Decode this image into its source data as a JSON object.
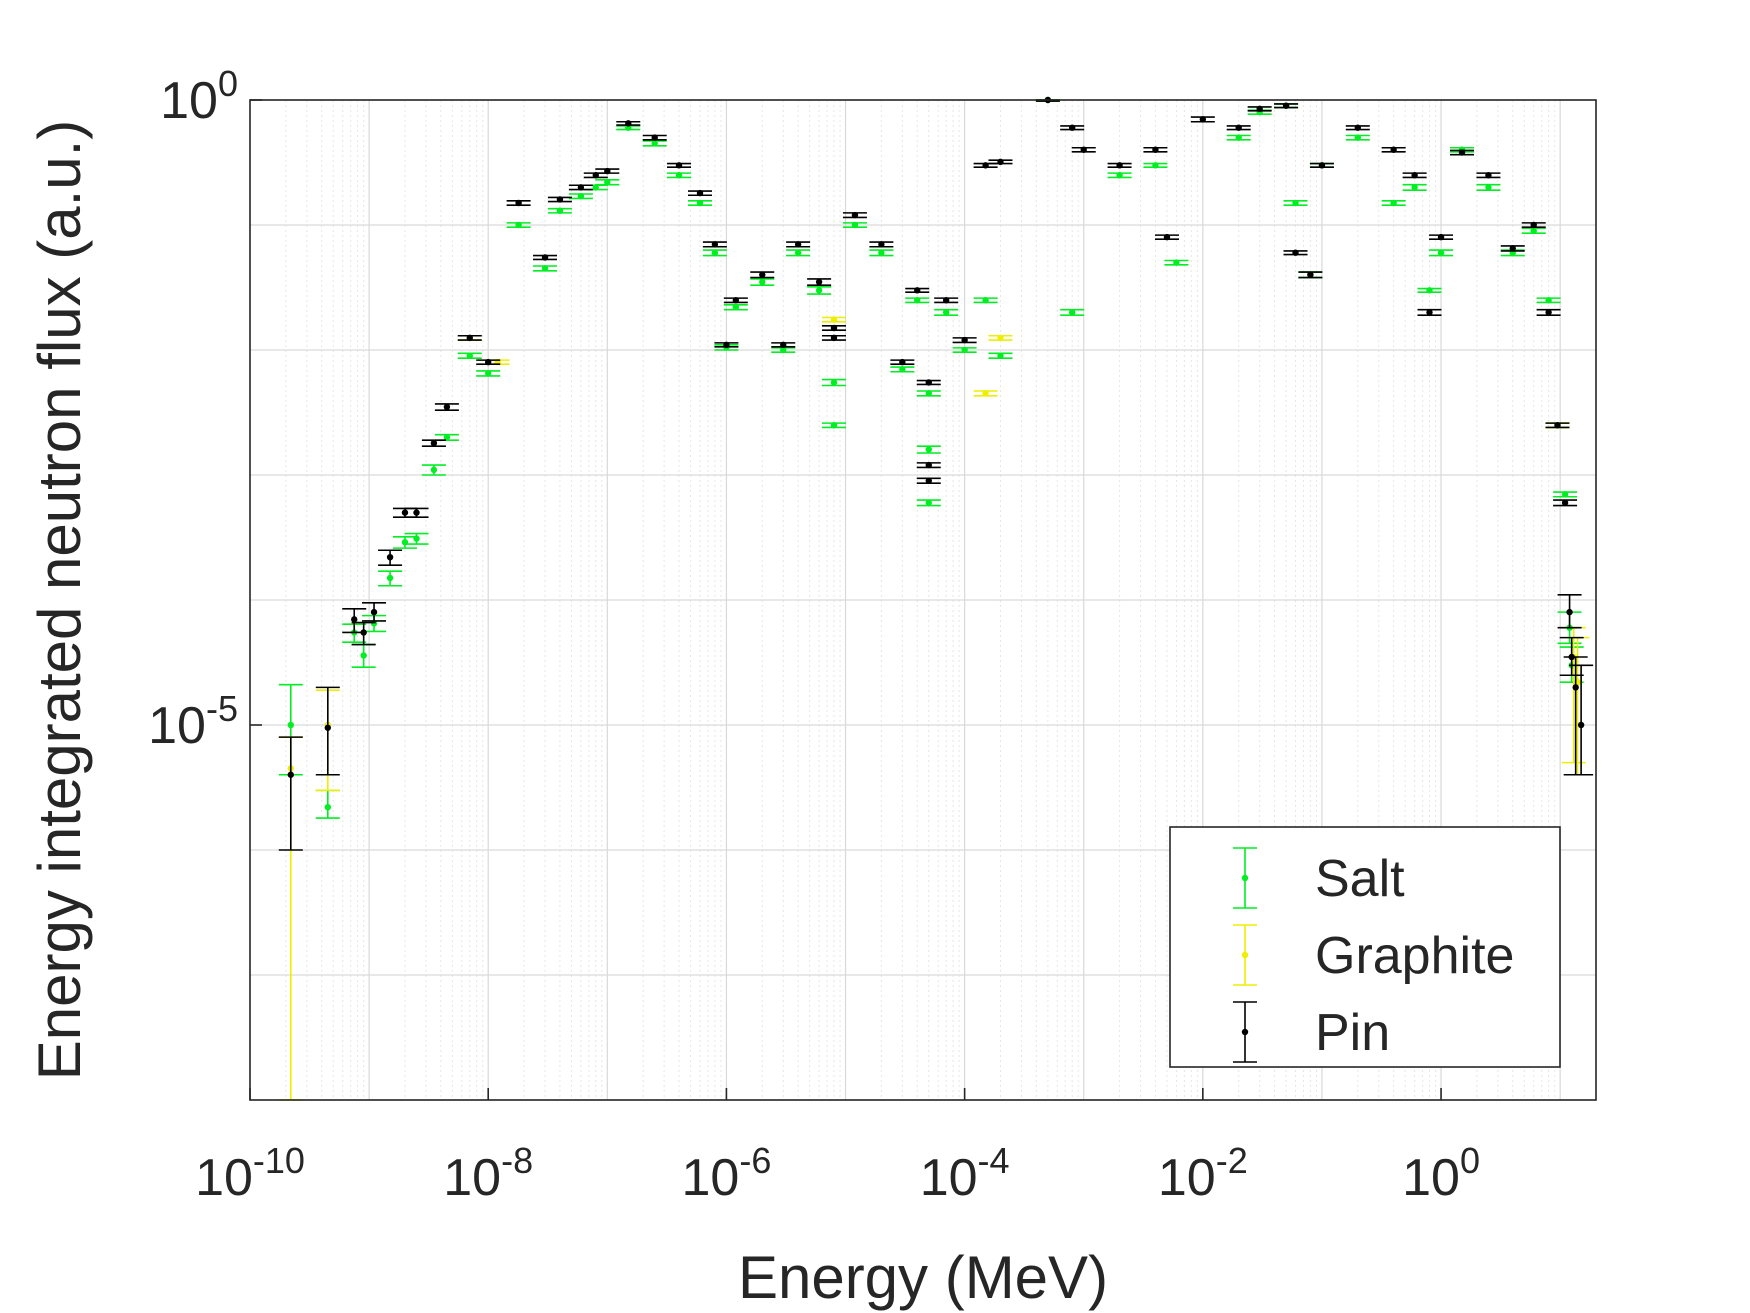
{
  "chart_data": {
    "type": "scatter",
    "title": "",
    "xlabel": "Energy (MeV)",
    "ylabel": "Energy integrated neutron flux (a.u.)",
    "x_scale": "log",
    "y_scale": "log",
    "xlim": [
      1e-10,
      20
    ],
    "ylim": [
      1e-08,
      1
    ],
    "x_ticks": [
      {
        "value": 1e-10,
        "base": "10",
        "exp": "-10"
      },
      {
        "value": 1e-08,
        "base": "10",
        "exp": "-8"
      },
      {
        "value": 1e-06,
        "base": "10",
        "exp": "-6"
      },
      {
        "value": 0.0001,
        "base": "10",
        "exp": "-4"
      },
      {
        "value": 0.01,
        "base": "10",
        "exp": "-2"
      },
      {
        "value": 1,
        "base": "10",
        "exp": "0"
      }
    ],
    "y_ticks": [
      {
        "value": 1,
        "base": "10",
        "exp": "0"
      },
      {
        "value": 1e-05,
        "base": "10",
        "exp": "-5"
      }
    ],
    "grid": true,
    "minor_grid": true,
    "legend_position": "bottom-right",
    "series": [
      {
        "name": "Salt",
        "color": "#00ee22",
        "points": [
          {
            "x": 2.2e-10,
            "y": 1e-05,
            "ylo": 4e-06,
            "yhi": 2.1e-05
          },
          {
            "x": 4.5e-10,
            "y": 2.2e-06,
            "ylo": 1.8e-06,
            "yhi": 3e-06
          },
          {
            "x": 7.5e-10,
            "y": 5.5e-05,
            "ylo": 4.6e-05,
            "yhi": 6.4e-05
          },
          {
            "x": 9e-10,
            "y": 3.6e-05,
            "ylo": 2.9e-05,
            "yhi": 4.4e-05
          },
          {
            "x": 1.1e-09,
            "y": 6.5e-05,
            "ylo": 5.6e-05,
            "yhi": 7.5e-05
          },
          {
            "x": 1.5e-09,
            "y": 0.00015,
            "ylo": 0.00013,
            "yhi": 0.00017
          },
          {
            "x": 2e-09,
            "y": 0.00029,
            "ylo": 0.00026,
            "yhi": 0.00032
          },
          {
            "x": 2.5e-09,
            "y": 0.00031,
            "ylo": 0.00028,
            "yhi": 0.00034
          },
          {
            "x": 3.5e-09,
            "y": 0.0011,
            "ylo": 0.001,
            "yhi": 0.0012
          },
          {
            "x": 4.5e-09,
            "y": 0.002,
            "ylo": 0.0019,
            "yhi": 0.0021
          },
          {
            "x": 7e-09,
            "y": 0.009,
            "ylo": 0.0086,
            "yhi": 0.0094
          },
          {
            "x": 1e-08,
            "y": 0.0065,
            "ylo": 0.0062,
            "yhi": 0.0068
          },
          {
            "x": 1.8e-08,
            "y": 0.1,
            "ylo": 0.096,
            "yhi": 0.104
          },
          {
            "x": 3e-08,
            "y": 0.045,
            "ylo": 0.043,
            "yhi": 0.047
          },
          {
            "x": 4e-08,
            "y": 0.13,
            "ylo": 0.125,
            "yhi": 0.135
          },
          {
            "x": 6e-08,
            "y": 0.17,
            "ylo": 0.163,
            "yhi": 0.177
          },
          {
            "x": 8e-08,
            "y": 0.2,
            "ylo": 0.192,
            "yhi": 0.208
          },
          {
            "x": 1e-07,
            "y": 0.22,
            "ylo": 0.21,
            "yhi": 0.23
          },
          {
            "x": 1.5e-07,
            "y": 0.6,
            "ylo": 0.58,
            "yhi": 0.62
          },
          {
            "x": 2.5e-07,
            "y": 0.45,
            "ylo": 0.43,
            "yhi": 0.47
          },
          {
            "x": 4e-07,
            "y": 0.25,
            "ylo": 0.24,
            "yhi": 0.26
          },
          {
            "x": 6e-07,
            "y": 0.15,
            "ylo": 0.144,
            "yhi": 0.156
          },
          {
            "x": 8e-07,
            "y": 0.06,
            "ylo": 0.057,
            "yhi": 0.063
          },
          {
            "x": 1e-06,
            "y": 0.0105,
            "ylo": 0.01,
            "yhi": 0.011
          },
          {
            "x": 1.2e-06,
            "y": 0.022,
            "ylo": 0.021,
            "yhi": 0.023
          },
          {
            "x": 2e-06,
            "y": 0.035,
            "ylo": 0.033,
            "yhi": 0.037
          },
          {
            "x": 3e-06,
            "y": 0.01,
            "ylo": 0.0096,
            "yhi": 0.0104
          },
          {
            "x": 4e-06,
            "y": 0.06,
            "ylo": 0.057,
            "yhi": 0.063
          },
          {
            "x": 6e-06,
            "y": 0.03,
            "ylo": 0.028,
            "yhi": 0.032
          },
          {
            "x": 8e-06,
            "y": 0.0025,
            "ylo": 0.0024,
            "yhi": 0.0026
          },
          {
            "x": 8e-06,
            "y": 0.0055,
            "ylo": 0.0052,
            "yhi": 0.0058
          },
          {
            "x": 1.2e-05,
            "y": 0.1,
            "ylo": 0.096,
            "yhi": 0.104
          },
          {
            "x": 2e-05,
            "y": 0.06,
            "ylo": 0.057,
            "yhi": 0.063
          },
          {
            "x": 3e-05,
            "y": 0.007,
            "ylo": 0.0067,
            "yhi": 0.0073
          },
          {
            "x": 4e-05,
            "y": 0.025,
            "ylo": 0.024,
            "yhi": 0.026
          },
          {
            "x": 5e-05,
            "y": 0.0016,
            "ylo": 0.0015,
            "yhi": 0.0017
          },
          {
            "x": 5e-05,
            "y": 0.0006,
            "ylo": 0.00057,
            "yhi": 0.00063
          },
          {
            "x": 5e-05,
            "y": 0.0045,
            "ylo": 0.0043,
            "yhi": 0.0047
          },
          {
            "x": 7e-05,
            "y": 0.02,
            "ylo": 0.019,
            "yhi": 0.021
          },
          {
            "x": 0.0001,
            "y": 0.01,
            "ylo": 0.0096,
            "yhi": 0.0104
          },
          {
            "x": 0.00015,
            "y": 0.025,
            "ylo": 0.024,
            "yhi": 0.026
          },
          {
            "x": 0.0002,
            "y": 0.009,
            "ylo": 0.0086,
            "yhi": 0.0094
          },
          {
            "x": 0.0005,
            "y": 1.0,
            "ylo": 0.98,
            "yhi": 1.0
          },
          {
            "x": 0.0008,
            "y": 0.02,
            "ylo": 0.019,
            "yhi": 0.021
          },
          {
            "x": 0.002,
            "y": 0.25,
            "ylo": 0.24,
            "yhi": 0.26
          },
          {
            "x": 0.004,
            "y": 0.3,
            "ylo": 0.29,
            "yhi": 0.31
          },
          {
            "x": 0.006,
            "y": 0.05,
            "ylo": 0.048,
            "yhi": 0.052
          },
          {
            "x": 0.02,
            "y": 0.5,
            "ylo": 0.48,
            "yhi": 0.52
          },
          {
            "x": 0.03,
            "y": 0.8,
            "ylo": 0.77,
            "yhi": 0.83
          },
          {
            "x": 0.05,
            "y": 0.9,
            "ylo": 0.87,
            "yhi": 0.93
          },
          {
            "x": 0.06,
            "y": 0.15,
            "ylo": 0.144,
            "yhi": 0.156
          },
          {
            "x": 0.08,
            "y": 0.04,
            "ylo": 0.038,
            "yhi": 0.042
          },
          {
            "x": 0.1,
            "y": 0.3,
            "ylo": 0.29,
            "yhi": 0.31
          },
          {
            "x": 0.2,
            "y": 0.5,
            "ylo": 0.48,
            "yhi": 0.52
          },
          {
            "x": 0.4,
            "y": 0.15,
            "ylo": 0.144,
            "yhi": 0.156
          },
          {
            "x": 0.6,
            "y": 0.2,
            "ylo": 0.19,
            "yhi": 0.21
          },
          {
            "x": 0.8,
            "y": 0.03,
            "ylo": 0.029,
            "yhi": 0.031
          },
          {
            "x": 1.0,
            "y": 0.06,
            "ylo": 0.057,
            "yhi": 0.063
          },
          {
            "x": 1.5,
            "y": 0.4,
            "ylo": 0.385,
            "yhi": 0.415
          },
          {
            "x": 2.5,
            "y": 0.2,
            "ylo": 0.19,
            "yhi": 0.21
          },
          {
            "x": 4.0,
            "y": 0.06,
            "ylo": 0.057,
            "yhi": 0.063
          },
          {
            "x": 6.0,
            "y": 0.09,
            "ylo": 0.086,
            "yhi": 0.094
          },
          {
            "x": 8.0,
            "y": 0.025,
            "ylo": 0.024,
            "yhi": 0.026
          },
          {
            "x": 9.5,
            "y": 0.0025,
            "ylo": 0.0024,
            "yhi": 0.0026
          },
          {
            "x": 11,
            "y": 0.0007,
            "ylo": 0.00067,
            "yhi": 0.00073
          },
          {
            "x": 12,
            "y": 6e-05,
            "ylo": 4.5e-05,
            "yhi": 8e-05
          },
          {
            "x": 12.5,
            "y": 3e-05,
            "ylo": 2.2e-05,
            "yhi": 4.2e-05
          }
        ]
      },
      {
        "name": "Graphite",
        "color": "#eeee00",
        "points": [
          {
            "x": 2.2e-10,
            "y": 4.5e-06,
            "ylo": 1e-08,
            "yhi": 8e-06
          },
          {
            "x": 4.5e-10,
            "y": 1e-05,
            "ylo": 3e-06,
            "yhi": 1.9e-05
          },
          {
            "x": 7e-09,
            "y": 0.0125,
            "ylo": 0.012,
            "yhi": 0.013
          },
          {
            "x": 1.2e-08,
            "y": 0.008,
            "ylo": 0.0077,
            "yhi": 0.0083
          },
          {
            "x": 8e-06,
            "y": 0.0175,
            "ylo": 0.0168,
            "yhi": 0.0182
          },
          {
            "x": 0.00015,
            "y": 0.0045,
            "ylo": 0.0043,
            "yhi": 0.0047
          },
          {
            "x": 0.0002,
            "y": 0.0125,
            "ylo": 0.012,
            "yhi": 0.013
          },
          {
            "x": 9.5,
            "y": 0.0025,
            "ylo": 0.0024,
            "yhi": 0.0026
          },
          {
            "x": 13,
            "y": 3.5e-05,
            "ylo": 5e-06,
            "yhi": 6e-05
          },
          {
            "x": 14,
            "y": 2.2e-05,
            "ylo": 4e-06,
            "yhi": 5e-05
          }
        ]
      },
      {
        "name": "Pin",
        "color": "#000000",
        "points": [
          {
            "x": 2.2e-10,
            "y": 4e-06,
            "ylo": 1e-06,
            "yhi": 8e-06
          },
          {
            "x": 4.5e-10,
            "y": 9.5e-06,
            "ylo": 4e-06,
            "yhi": 2e-05
          },
          {
            "x": 7.5e-10,
            "y": 7e-05,
            "ylo": 5.5e-05,
            "yhi": 8.5e-05
          },
          {
            "x": 9e-10,
            "y": 5.5e-05,
            "ylo": 4.4e-05,
            "yhi": 6.6e-05
          },
          {
            "x": 1.1e-09,
            "y": 8e-05,
            "ylo": 6.8e-05,
            "yhi": 9.5e-05
          },
          {
            "x": 1.5e-09,
            "y": 0.00022,
            "ylo": 0.00019,
            "yhi": 0.00025
          },
          {
            "x": 2e-09,
            "y": 0.0005,
            "ylo": 0.00046,
            "yhi": 0.00054
          },
          {
            "x": 2.5e-09,
            "y": 0.0005,
            "ylo": 0.00046,
            "yhi": 0.00054
          },
          {
            "x": 3.5e-09,
            "y": 0.0018,
            "ylo": 0.0017,
            "yhi": 0.0019
          },
          {
            "x": 4.5e-09,
            "y": 0.0035,
            "ylo": 0.0033,
            "yhi": 0.0037
          },
          {
            "x": 7e-09,
            "y": 0.0125,
            "ylo": 0.012,
            "yhi": 0.013
          },
          {
            "x": 1e-08,
            "y": 0.008,
            "ylo": 0.0077,
            "yhi": 0.0083
          },
          {
            "x": 1.8e-08,
            "y": 0.15,
            "ylo": 0.144,
            "yhi": 0.156
          },
          {
            "x": 3e-08,
            "y": 0.055,
            "ylo": 0.053,
            "yhi": 0.057
          },
          {
            "x": 4e-08,
            "y": 0.16,
            "ylo": 0.154,
            "yhi": 0.166
          },
          {
            "x": 6e-08,
            "y": 0.2,
            "ylo": 0.192,
            "yhi": 0.208
          },
          {
            "x": 8e-08,
            "y": 0.25,
            "ylo": 0.24,
            "yhi": 0.26
          },
          {
            "x": 1e-07,
            "y": 0.27,
            "ylo": 0.26,
            "yhi": 0.28
          },
          {
            "x": 1.5e-07,
            "y": 0.65,
            "ylo": 0.63,
            "yhi": 0.67
          },
          {
            "x": 2.5e-07,
            "y": 0.5,
            "ylo": 0.48,
            "yhi": 0.52
          },
          {
            "x": 4e-07,
            "y": 0.3,
            "ylo": 0.29,
            "yhi": 0.31
          },
          {
            "x": 6e-07,
            "y": 0.18,
            "ylo": 0.173,
            "yhi": 0.187
          },
          {
            "x": 8e-07,
            "y": 0.07,
            "ylo": 0.067,
            "yhi": 0.073
          },
          {
            "x": 1e-06,
            "y": 0.011,
            "ylo": 0.0106,
            "yhi": 0.0114
          },
          {
            "x": 1.2e-06,
            "y": 0.025,
            "ylo": 0.024,
            "yhi": 0.026
          },
          {
            "x": 2e-06,
            "y": 0.04,
            "ylo": 0.038,
            "yhi": 0.042
          },
          {
            "x": 3e-06,
            "y": 0.011,
            "ylo": 0.0106,
            "yhi": 0.0114
          },
          {
            "x": 4e-06,
            "y": 0.07,
            "ylo": 0.067,
            "yhi": 0.073
          },
          {
            "x": 6e-06,
            "y": 0.035,
            "ylo": 0.033,
            "yhi": 0.037
          },
          {
            "x": 8e-06,
            "y": 0.015,
            "ylo": 0.0144,
            "yhi": 0.0156
          },
          {
            "x": 8e-06,
            "y": 0.0125,
            "ylo": 0.012,
            "yhi": 0.013
          },
          {
            "x": 1.2e-05,
            "y": 0.12,
            "ylo": 0.115,
            "yhi": 0.125
          },
          {
            "x": 2e-05,
            "y": 0.07,
            "ylo": 0.067,
            "yhi": 0.073
          },
          {
            "x": 3e-05,
            "y": 0.008,
            "ylo": 0.0077,
            "yhi": 0.0083
          },
          {
            "x": 4e-05,
            "y": 0.03,
            "ylo": 0.029,
            "yhi": 0.031
          },
          {
            "x": 5e-05,
            "y": 0.0012,
            "ylo": 0.00115,
            "yhi": 0.00125
          },
          {
            "x": 5e-05,
            "y": 0.0009,
            "ylo": 0.00086,
            "yhi": 0.00094
          },
          {
            "x": 5e-05,
            "y": 0.0055,
            "ylo": 0.0053,
            "yhi": 0.0057
          },
          {
            "x": 7e-05,
            "y": 0.025,
            "ylo": 0.024,
            "yhi": 0.026
          },
          {
            "x": 0.0001,
            "y": 0.012,
            "ylo": 0.0115,
            "yhi": 0.0125
          },
          {
            "x": 0.00015,
            "y": 0.3,
            "ylo": 0.29,
            "yhi": 0.31
          },
          {
            "x": 0.0002,
            "y": 0.32,
            "ylo": 0.31,
            "yhi": 0.33
          },
          {
            "x": 0.0005,
            "y": 1.0,
            "ylo": 0.98,
            "yhi": 1.0
          },
          {
            "x": 0.0008,
            "y": 0.6,
            "ylo": 0.58,
            "yhi": 0.62
          },
          {
            "x": 0.001,
            "y": 0.4,
            "ylo": 0.385,
            "yhi": 0.415
          },
          {
            "x": 0.002,
            "y": 0.3,
            "ylo": 0.29,
            "yhi": 0.31
          },
          {
            "x": 0.004,
            "y": 0.4,
            "ylo": 0.385,
            "yhi": 0.415
          },
          {
            "x": 0.005,
            "y": 0.08,
            "ylo": 0.077,
            "yhi": 0.083
          },
          {
            "x": 0.01,
            "y": 0.7,
            "ylo": 0.67,
            "yhi": 0.73
          },
          {
            "x": 0.02,
            "y": 0.6,
            "ylo": 0.58,
            "yhi": 0.62
          },
          {
            "x": 0.03,
            "y": 0.85,
            "ylo": 0.82,
            "yhi": 0.88
          },
          {
            "x": 0.05,
            "y": 0.9,
            "ylo": 0.87,
            "yhi": 0.93
          },
          {
            "x": 0.06,
            "y": 0.06,
            "ylo": 0.058,
            "yhi": 0.062
          },
          {
            "x": 0.08,
            "y": 0.04,
            "ylo": 0.038,
            "yhi": 0.042
          },
          {
            "x": 0.1,
            "y": 0.3,
            "ylo": 0.29,
            "yhi": 0.31
          },
          {
            "x": 0.2,
            "y": 0.6,
            "ylo": 0.58,
            "yhi": 0.62
          },
          {
            "x": 0.4,
            "y": 0.4,
            "ylo": 0.385,
            "yhi": 0.415
          },
          {
            "x": 0.6,
            "y": 0.25,
            "ylo": 0.24,
            "yhi": 0.26
          },
          {
            "x": 0.8,
            "y": 0.02,
            "ylo": 0.019,
            "yhi": 0.021
          },
          {
            "x": 1.0,
            "y": 0.08,
            "ylo": 0.077,
            "yhi": 0.083
          },
          {
            "x": 1.5,
            "y": 0.38,
            "ylo": 0.365,
            "yhi": 0.395
          },
          {
            "x": 2.5,
            "y": 0.25,
            "ylo": 0.24,
            "yhi": 0.26
          },
          {
            "x": 4.0,
            "y": 0.065,
            "ylo": 0.062,
            "yhi": 0.068
          },
          {
            "x": 6.0,
            "y": 0.1,
            "ylo": 0.096,
            "yhi": 0.104
          },
          {
            "x": 8.0,
            "y": 0.02,
            "ylo": 0.019,
            "yhi": 0.021
          },
          {
            "x": 9.5,
            "y": 0.0025,
            "ylo": 0.0024,
            "yhi": 0.0026
          },
          {
            "x": 11,
            "y": 0.0006,
            "ylo": 0.00057,
            "yhi": 0.00063
          },
          {
            "x": 12,
            "y": 8e-05,
            "ylo": 6e-05,
            "yhi": 0.00011
          },
          {
            "x": 12.5,
            "y": 3.5e-05,
            "ylo": 2.5e-05,
            "yhi": 5e-05
          },
          {
            "x": 13.5,
            "y": 2e-05,
            "ylo": 4e-06,
            "yhi": 3.5e-05
          },
          {
            "x": 15,
            "y": 1e-05,
            "ylo": 4e-06,
            "yhi": 3e-05
          }
        ]
      }
    ]
  }
}
